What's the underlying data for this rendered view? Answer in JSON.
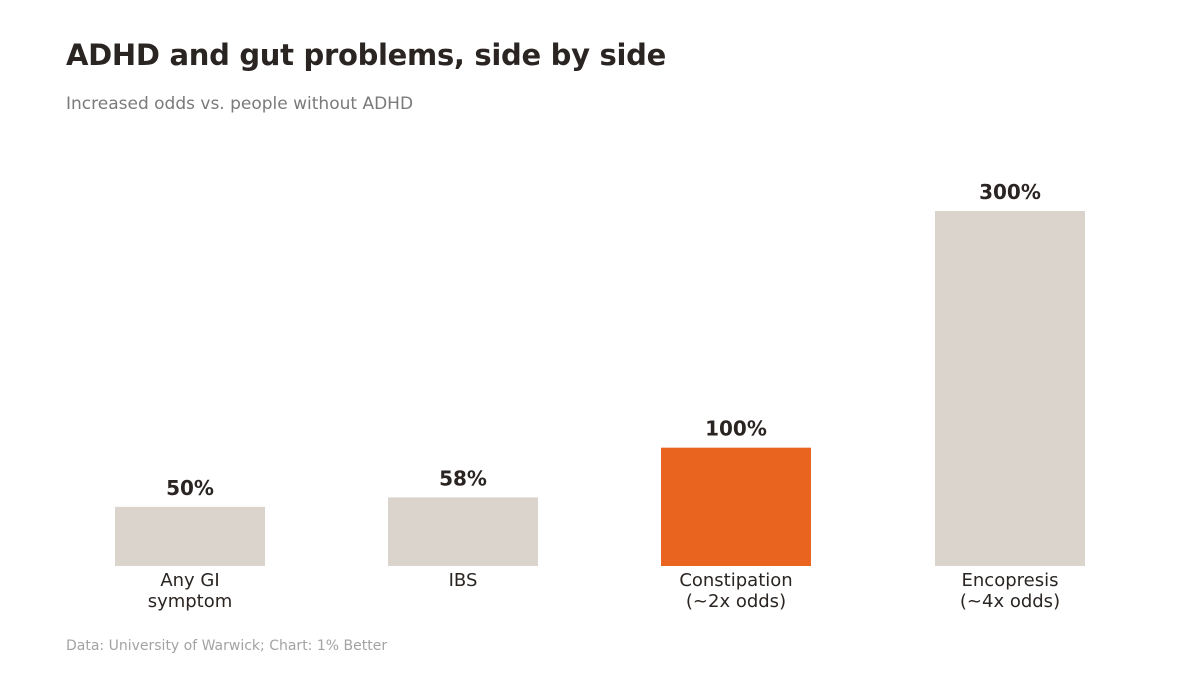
{
  "title": "ADHD and gut problems, side by side",
  "subtitle": "Increased odds vs. people without ADHD",
  "source": "Data: University of Warwick; Chart: 1% Better",
  "colors": {
    "bar": "#dad4cc",
    "highlight": "#e8641f",
    "text": "#2a2522",
    "muted": "#7a7a7a"
  },
  "chart_data": {
    "type": "bar",
    "title": "ADHD and gut problems, side by side",
    "subtitle": "Increased odds vs. people without ADHD",
    "categories": [
      [
        "Any GI",
        "symptom"
      ],
      [
        "IBS"
      ],
      [
        "Constipation",
        "(~2x odds)"
      ],
      [
        "Encopresis",
        "(~4x odds)"
      ]
    ],
    "values": [
      50,
      58,
      100,
      300
    ],
    "value_labels": [
      "50%",
      "58%",
      "100%",
      "300%"
    ],
    "highlight_index": 2,
    "ylim": [
      0,
      300
    ],
    "xlabel": "",
    "ylabel": "",
    "grid": false,
    "legend": "none"
  }
}
